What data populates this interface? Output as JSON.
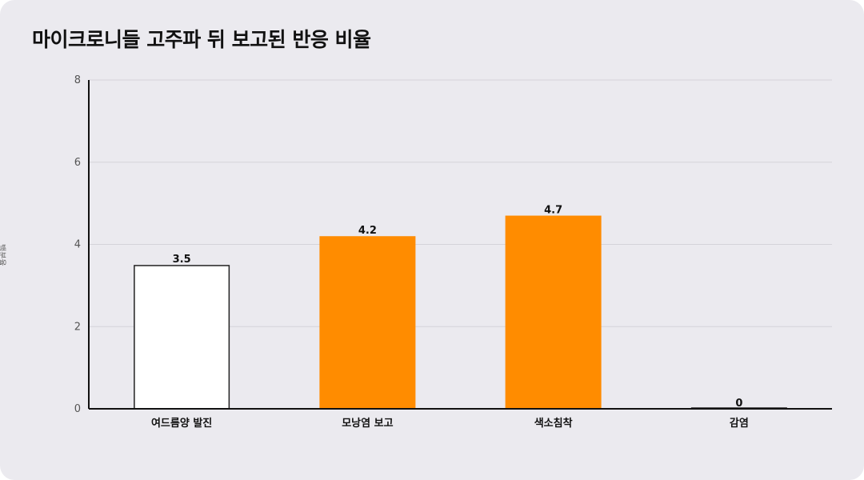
{
  "chart_data": {
    "type": "bar",
    "title": "마이크로니들 고주파 뒤 보고된 반응 비율",
    "ylabel": "백분율",
    "xlabel": "",
    "categories": [
      "여드름양 발진",
      "모낭염 보고",
      "색소침착",
      "감염"
    ],
    "values": [
      3.5,
      4.2,
      4.7,
      0
    ],
    "value_labels": [
      "3.5",
      "4.2",
      "4.7",
      "0"
    ],
    "ylim": [
      0,
      8
    ],
    "yticks": [
      0,
      2,
      4,
      6,
      8
    ],
    "grid": true,
    "bar_colors": [
      "#ffffff",
      "#ff8c00",
      "#ff8c00",
      "#ff8c00"
    ],
    "bar_stroke": [
      "#222222",
      "none",
      "none",
      "#222222"
    ]
  }
}
